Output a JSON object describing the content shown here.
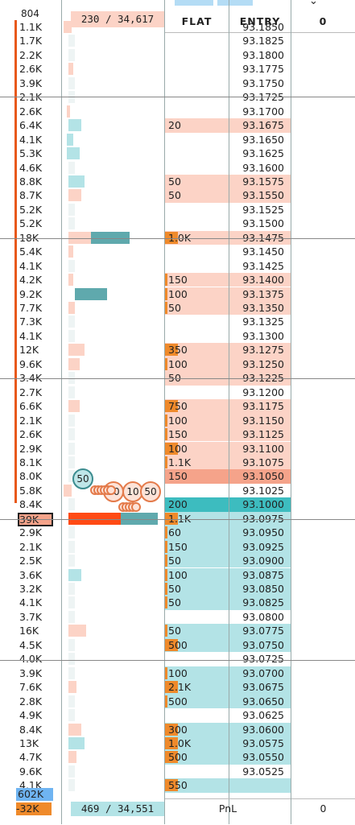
{
  "header": {
    "top_volume": "804",
    "ask_summary": "230 / 34,617",
    "flat_header": "FLAT",
    "entry_header": "ENTRY",
    "position_header": "0",
    "chevron_icon": "chevron-down-icon"
  },
  "rows": [
    {
      "vol": "1.1K",
      "flat": "",
      "entry": "93.1850"
    },
    {
      "vol": "1.7K",
      "flat": "",
      "entry": "93.1825"
    },
    {
      "vol": "2.2K",
      "flat": "",
      "entry": "93.1800"
    },
    {
      "vol": "2.6K",
      "flat": "",
      "entry": "93.1775"
    },
    {
      "vol": "3.9K",
      "flat": "",
      "entry": "93.1750"
    },
    {
      "vol": "2.1K",
      "flat": "",
      "entry": "93.1725"
    },
    {
      "vol": "2.6K",
      "flat": "",
      "entry": "93.1700"
    },
    {
      "vol": "6.4K",
      "flat": "20",
      "entry": "93.1675"
    },
    {
      "vol": "4.1K",
      "flat": "",
      "entry": "93.1650"
    },
    {
      "vol": "5.3K",
      "flat": "",
      "entry": "93.1625"
    },
    {
      "vol": "4.6K",
      "flat": "",
      "entry": "93.1600"
    },
    {
      "vol": "8.8K",
      "flat": "50",
      "entry": "93.1575"
    },
    {
      "vol": "8.7K",
      "flat": "50",
      "entry": "93.1550"
    },
    {
      "vol": "5.2K",
      "flat": "",
      "entry": "93.1525"
    },
    {
      "vol": "5.2K",
      "flat": "",
      "entry": "93.1500"
    },
    {
      "vol": "18K",
      "flat": "1.0K",
      "entry": "93.1475"
    },
    {
      "vol": "5.4K",
      "flat": "",
      "entry": "93.1450"
    },
    {
      "vol": "4.1K",
      "flat": "",
      "entry": "93.1425"
    },
    {
      "vol": "4.2K",
      "flat": "150",
      "entry": "93.1400"
    },
    {
      "vol": "9.2K",
      "flat": "100",
      "entry": "93.1375"
    },
    {
      "vol": "7.7K",
      "flat": "50",
      "entry": "93.1350"
    },
    {
      "vol": "7.3K",
      "flat": "",
      "entry": "93.1325"
    },
    {
      "vol": "4.1K",
      "flat": "",
      "entry": "93.1300"
    },
    {
      "vol": "12K",
      "flat": "350",
      "entry": "93.1275"
    },
    {
      "vol": "9.6K",
      "flat": "100",
      "entry": "93.1250"
    },
    {
      "vol": "3.4K",
      "flat": "50",
      "entry": "93.1225"
    },
    {
      "vol": "2.7K",
      "flat": "",
      "entry": "93.1200"
    },
    {
      "vol": "6.6K",
      "flat": "750",
      "entry": "93.1175"
    },
    {
      "vol": "2.1K",
      "flat": "100",
      "entry": "93.1150"
    },
    {
      "vol": "2.6K",
      "flat": "150",
      "entry": "93.1125"
    },
    {
      "vol": "2.9K",
      "flat": "100",
      "entry": "93.1100"
    },
    {
      "vol": "8.1K",
      "flat": "1.1K",
      "entry": "93.1075"
    },
    {
      "vol": "8.0K",
      "flat": "150",
      "entry": "93.1050"
    },
    {
      "vol": "5.8K",
      "flat": "",
      "entry": "93.1025"
    },
    {
      "vol": "8.4K",
      "flat": "200",
      "entry": "93.1000"
    },
    {
      "vol": "39K",
      "flat": "1.1K",
      "entry": "93.0975"
    },
    {
      "vol": "2.9K",
      "flat": "60",
      "entry": "93.0950"
    },
    {
      "vol": "2.1K",
      "flat": "150",
      "entry": "93.0925"
    },
    {
      "vol": "2.5K",
      "flat": "50",
      "entry": "93.0900"
    },
    {
      "vol": "3.6K",
      "flat": "100",
      "entry": "93.0875"
    },
    {
      "vol": "3.2K",
      "flat": "50",
      "entry": "93.0850"
    },
    {
      "vol": "4.1K",
      "flat": "50",
      "entry": "93.0825"
    },
    {
      "vol": "3.7K",
      "flat": "",
      "entry": "93.0800"
    },
    {
      "vol": "16K",
      "flat": "50",
      "entry": "93.0775"
    },
    {
      "vol": "4.5K",
      "flat": "500",
      "entry": "93.0750"
    },
    {
      "vol": "4.0K",
      "flat": "",
      "entry": "93.0725"
    },
    {
      "vol": "3.9K",
      "flat": "100",
      "entry": "93.0700"
    },
    {
      "vol": "7.6K",
      "flat": "2.1K",
      "entry": "93.0675"
    },
    {
      "vol": "2.8K",
      "flat": "500",
      "entry": "93.0650"
    },
    {
      "vol": "4.9K",
      "flat": "",
      "entry": "93.0625"
    },
    {
      "vol": "8.4K",
      "flat": "300",
      "entry": "93.0600"
    },
    {
      "vol": "13K",
      "flat": "1.0K",
      "entry": "93.0575"
    },
    {
      "vol": "4.7K",
      "flat": "500",
      "entry": "93.0550"
    },
    {
      "vol": "9.6K",
      "flat": "",
      "entry": "93.0525"
    },
    {
      "vol": "4.1K",
      "flat": "550",
      "entry": ""
    }
  ],
  "bubbles": [
    "50",
    "50",
    "10",
    "50"
  ],
  "footer": {
    "cum_volume": "602K",
    "delta": "-32K",
    "bid_summary": "469 / 34,551",
    "pnl_label": "PnL",
    "pnl_value": "0"
  },
  "colors": {
    "ask": "#fcd3c6",
    "bid": "#b3e3e6",
    "teal": "#5fa9ad",
    "orange": "#ef8a2b",
    "redline": "#e8581a",
    "highlight_red": "#f5a38a",
    "current_teal": "#3dbcbf",
    "cumvol_blue": "#6fb4f2"
  }
}
